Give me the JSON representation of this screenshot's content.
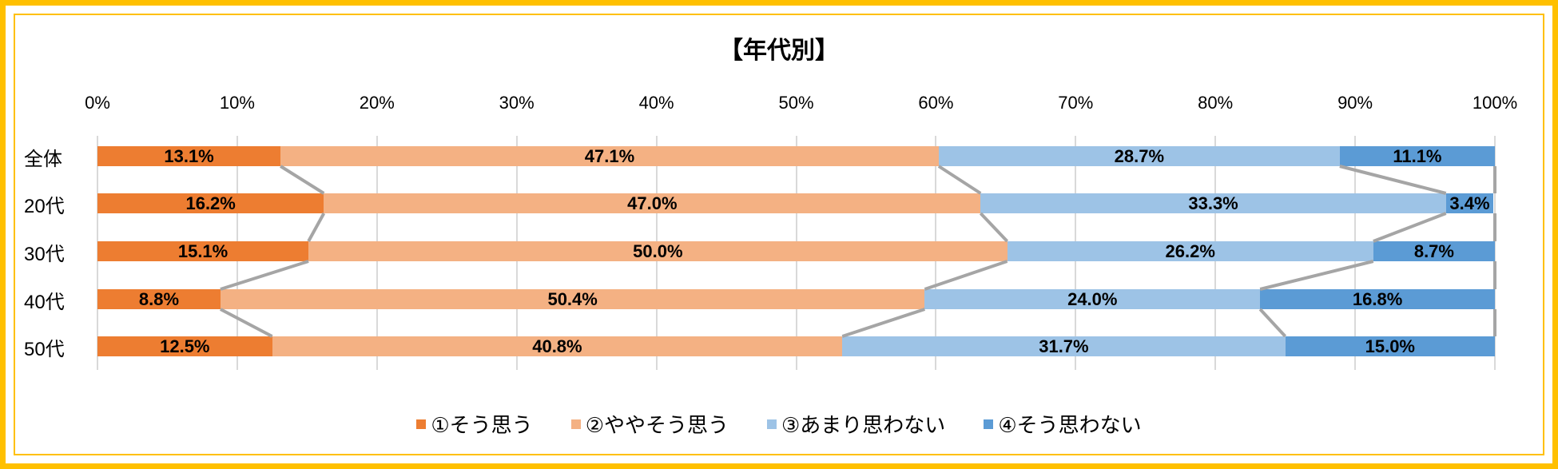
{
  "chart_data": {
    "type": "bar",
    "orientation": "horizontal",
    "stacked": "100%",
    "title": "【年代別】",
    "categories": [
      "全体",
      "20代",
      "30代",
      "40代",
      "50代"
    ],
    "series": [
      {
        "name": "①そう思う",
        "color": "#ED7D31",
        "values": [
          13.1,
          16.2,
          15.1,
          8.8,
          12.5
        ]
      },
      {
        "name": "②ややそう思う",
        "color": "#F4B183",
        "values": [
          47.1,
          47.0,
          50.0,
          50.4,
          40.8
        ]
      },
      {
        "name": "③あまり思わない",
        "color": "#9DC3E6",
        "values": [
          28.7,
          33.3,
          26.2,
          24.0,
          31.7
        ]
      },
      {
        "name": "④そう思わない",
        "color": "#5B9BD5",
        "values": [
          11.1,
          3.4,
          8.7,
          16.8,
          15.0
        ]
      }
    ],
    "data_labels": [
      [
        "13.1%",
        "47.1%",
        "28.7%",
        "11.1%"
      ],
      [
        "16.2%",
        "47.0%",
        "33.3%",
        "3.4%"
      ],
      [
        "15.1%",
        "50.0%",
        "26.2%",
        "8.7%"
      ],
      [
        "8.8%",
        "50.4%",
        "24.0%",
        "16.8%"
      ],
      [
        "12.5%",
        "40.8%",
        "31.7%",
        "15.0%"
      ]
    ],
    "xaxis_ticks": [
      "0%",
      "10%",
      "20%",
      "30%",
      "40%",
      "50%",
      "60%",
      "70%",
      "80%",
      "90%",
      "100%"
    ],
    "xlim": [
      0,
      100
    ],
    "xaxis_position": "top",
    "grid": true,
    "series_lines": true,
    "legend_position": "bottom"
  },
  "colors": {
    "frame": "#FFC000",
    "grid": "#D9D9D9",
    "series_line": "#A5A5A5"
  }
}
